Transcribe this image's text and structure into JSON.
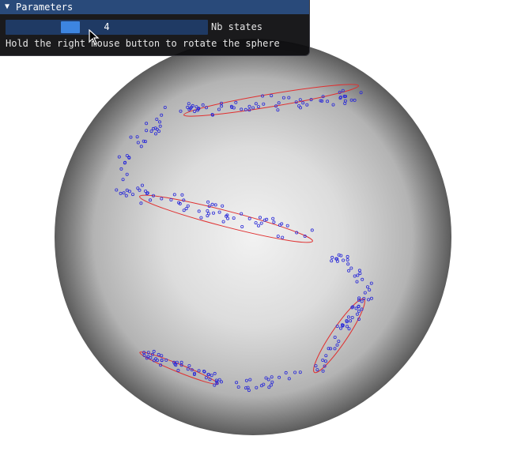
{
  "window": {
    "title": "Parameters",
    "collapse_icon": "triangle-down-icon"
  },
  "slider": {
    "value": "4",
    "label": "Nb states",
    "fraction": 0.3
  },
  "hint": "Hold the right mouse button to rotate the sphere",
  "colors": {
    "title_bar": "#294a7a",
    "panel_bg": "#0c0c0e",
    "slider_bg": "#1f3a64",
    "slider_grab": "#3d85e0",
    "points": "#2b2bd8",
    "ellipses": "#e03030",
    "sphere_center": "#f2f2f2",
    "sphere_edge": "#5a5a5a"
  }
}
